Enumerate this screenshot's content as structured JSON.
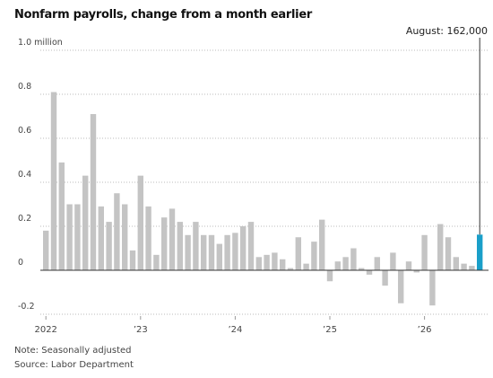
{
  "chart_data": {
    "type": "bar",
    "title": "Nonfarm payrolls, change from a month earlier",
    "annotation": "August: 162,000",
    "note": "Note: Seasonally adjusted",
    "source": "Source: Labor Department",
    "categories": [
      "2022",
      null,
      null,
      null,
      null,
      null,
      null,
      null,
      null,
      null,
      null,
      null,
      "’23",
      null,
      null,
      null,
      null,
      null,
      null,
      null,
      null,
      null,
      null,
      null,
      "’24",
      null,
      null,
      null,
      null,
      null,
      null,
      null,
      null,
      null,
      null,
      null,
      "’25",
      null,
      null,
      null,
      null,
      null,
      null,
      null,
      null,
      null,
      null,
      null,
      "’26",
      null,
      null,
      null,
      null,
      null,
      null,
      null
    ],
    "values": [
      0.18,
      0.81,
      0.49,
      0.3,
      0.3,
      0.43,
      0.71,
      0.29,
      0.22,
      0.35,
      0.3,
      0.09,
      0.43,
      0.29,
      0.07,
      0.24,
      0.28,
      0.22,
      0.16,
      0.22,
      0.16,
      0.16,
      0.12,
      0.16,
      0.17,
      0.2,
      0.22,
      0.06,
      0.07,
      0.08,
      0.05,
      0.01,
      0.15,
      0.03,
      0.13,
      0.23,
      -0.05,
      0.04,
      0.06,
      0.1,
      0.01,
      -0.02,
      0.06,
      -0.07,
      0.08,
      -0.15,
      0.04,
      -0.01,
      0.16,
      -0.16,
      0.21,
      0.15,
      0.06,
      0.03,
      0.02,
      0.162
    ],
    "color": "#c4c4c4",
    "highlight_color": "#1a9fc9",
    "ylim": [
      -0.2,
      1.0
    ],
    "yticks": [
      {
        "value": 1.0,
        "label": "1.0 million"
      },
      0.8,
      0.6,
      0.4,
      0.2,
      0,
      -0.2
    ],
    "grid": true
  }
}
